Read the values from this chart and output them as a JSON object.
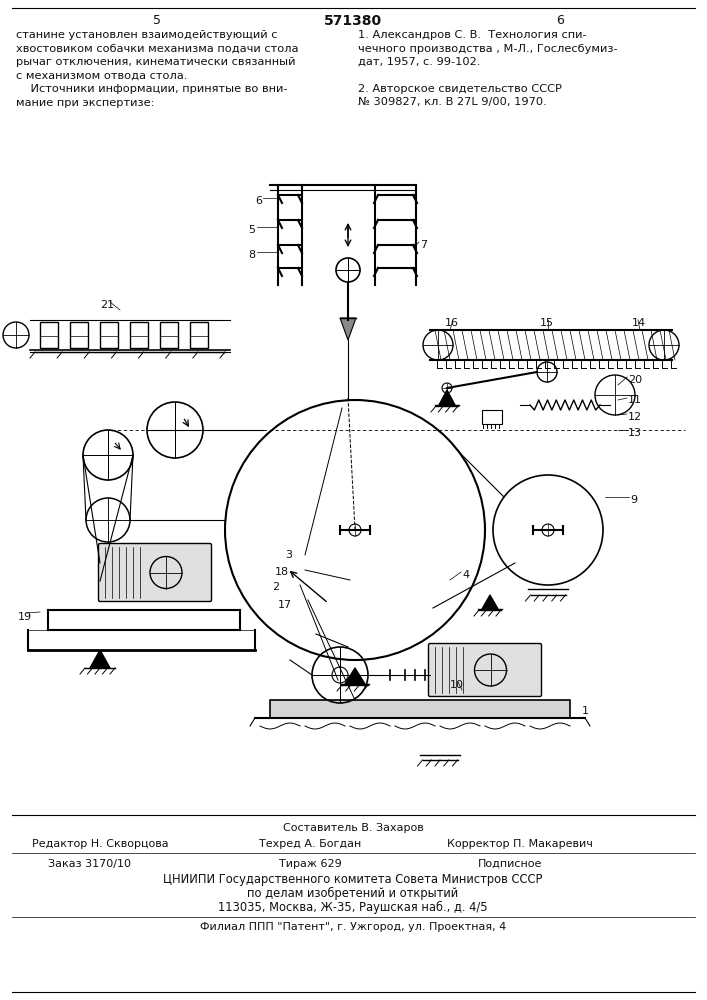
{
  "patent_number": "571380",
  "page_left": "5",
  "page_right": "6",
  "left_column_text": [
    "станине установлен взаимодействующий с",
    "хвостовиком собачки механизма подачи стола",
    "рычаг отключения, кинематически связанный",
    "с механизмом отвода стола.",
    "    Источники информации, принятые во вни-",
    "мание при экспертизе:"
  ],
  "right_column_text": [
    "1. Александров С. В.  Технология спи-",
    "чечного производства , М-Л., Гослесбумиз-",
    "дат, 1957, с. 99-102.",
    "",
    "2. Авторское свидетельство СССР",
    "№ 309827, кл. В 27L 9/00, 1970."
  ],
  "footer_line0": "Составитель В. Захаров",
  "footer_line1": "Редактор Н. Скворцова",
  "footer_line1b": "Техред А. Богдан",
  "footer_line1c": "Корректор П. Макаревич",
  "footer_line2a": "Заказ 3170/10",
  "footer_line2b": "Тираж 629",
  "footer_line2c": "Подписное",
  "footer_line3": "ЦНИИПИ Государственного комитета Совета Министров СССР",
  "footer_line4": "по делам изобретений и открытий",
  "footer_line5": "113035, Москва, Ж-35, Раушская наб., д. 4/5",
  "footer_line6": "Филиал ППП \"Патент\", г. Ужгород, ул. Проектная, 4"
}
